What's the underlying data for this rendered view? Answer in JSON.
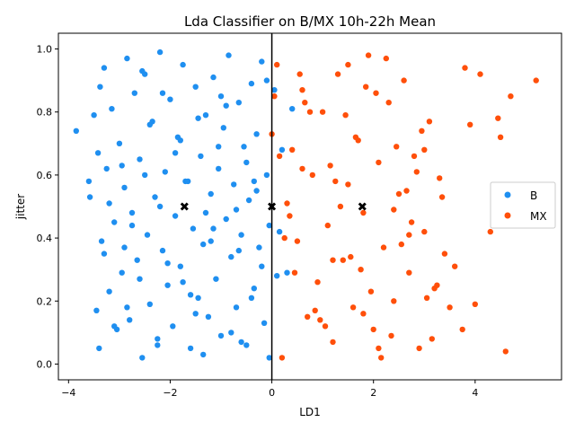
{
  "chart_data": {
    "type": "scatter",
    "title": "Lda Classifier on B/MX 10h-22h Mean",
    "xlabel": "LD1",
    "ylabel": "jitter",
    "xlim": [
      -4.2,
      5.7
    ],
    "ylim": [
      -0.05,
      1.05
    ],
    "xticks": [
      -4,
      -2,
      0,
      2,
      4
    ],
    "yticks": [
      0.0,
      0.2,
      0.4,
      0.6,
      0.8,
      1.0
    ],
    "xtick_labels": [
      "−4",
      "−2",
      "0",
      "2",
      "4"
    ],
    "ytick_labels": [
      "0.0",
      "0.2",
      "0.4",
      "0.6",
      "0.8",
      "1.0"
    ],
    "grid": false,
    "legend_position": "right",
    "series": [
      {
        "name": "B",
        "color": "#1f8ff0",
        "x": [
          -3.85,
          -3.6,
          -3.58,
          -3.5,
          -3.45,
          -3.42,
          -3.4,
          -3.38,
          -3.35,
          -3.3,
          -3.25,
          -3.2,
          -3.15,
          -3.1,
          -3.05,
          -3.0,
          -2.95,
          -2.9,
          -2.85,
          -2.8,
          -2.75,
          -2.7,
          -2.65,
          -2.6,
          -2.55,
          -2.5,
          -2.45,
          -2.4,
          -2.35,
          -2.3,
          -2.25,
          -2.2,
          -2.15,
          -2.1,
          -2.05,
          -2.0,
          -1.95,
          -1.9,
          -1.85,
          -1.8,
          -1.75,
          -1.7,
          -1.6,
          -1.55,
          -1.5,
          -1.45,
          -1.4,
          -1.35,
          -1.3,
          -1.25,
          -1.2,
          -1.15,
          -1.1,
          -1.05,
          -1.0,
          -0.95,
          -0.9,
          -0.85,
          -0.8,
          -0.75,
          -0.7,
          -0.65,
          -0.6,
          -0.55,
          -0.5,
          -0.45,
          -0.4,
          -0.35,
          -0.3,
          -0.25,
          -0.2,
          -0.15,
          -0.1,
          -0.05,
          0.05,
          0.1,
          0.15,
          0.2,
          0.3,
          0.4,
          -3.3,
          -2.95,
          -2.6,
          -2.2,
          -1.8,
          -1.5,
          -1.2,
          -0.9,
          -0.6,
          -0.3,
          -3.1,
          -2.75,
          -2.4,
          -2.05,
          -1.65,
          -1.35,
          -1.05,
          -0.7,
          -0.4,
          -0.1,
          -3.2,
          -2.85,
          -2.5,
          -2.15,
          -1.75,
          -1.45,
          -1.15,
          -0.8,
          -0.5,
          -0.2,
          -2.9,
          -2.55,
          -2.25,
          -1.9,
          -1.6,
          -1.3,
          -1.0,
          -0.65,
          -0.35,
          -0.05
        ],
        "y": [
          0.74,
          0.58,
          0.53,
          0.79,
          0.17,
          0.67,
          0.05,
          0.88,
          0.39,
          0.94,
          0.62,
          0.23,
          0.81,
          0.45,
          0.11,
          0.7,
          0.29,
          0.56,
          0.97,
          0.14,
          0.48,
          0.86,
          0.33,
          0.65,
          0.02,
          0.92,
          0.41,
          0.19,
          0.77,
          0.53,
          0.08,
          0.99,
          0.36,
          0.61,
          0.25,
          0.84,
          0.12,
          0.47,
          0.72,
          0.31,
          0.95,
          0.58,
          0.05,
          0.43,
          0.88,
          0.21,
          0.66,
          0.38,
          0.79,
          0.15,
          0.54,
          0.91,
          0.27,
          0.62,
          0.09,
          0.75,
          0.46,
          0.98,
          0.34,
          0.57,
          0.18,
          0.83,
          0.41,
          0.69,
          0.06,
          0.52,
          0.89,
          0.24,
          0.73,
          0.37,
          0.96,
          0.13,
          0.6,
          0.44,
          0.87,
          0.28,
          0.42,
          0.68,
          0.29,
          0.81,
          0.35,
          0.63,
          0.27,
          0.5,
          0.71,
          0.16,
          0.39,
          0.82,
          0.07,
          0.55,
          0.12,
          0.44,
          0.76,
          0.32,
          0.58,
          0.03,
          0.69,
          0.49,
          0.21,
          0.9,
          0.51,
          0.18,
          0.6,
          0.86,
          0.26,
          0.78,
          0.43,
          0.1,
          0.64,
          0.31,
          0.37,
          0.93,
          0.06,
          0.67,
          0.22,
          0.48,
          0.85,
          0.36,
          0.58,
          0.02
        ]
      },
      {
        "name": "MX",
        "color": "#ff4f0a",
        "x": [
          0.0,
          0.1,
          0.2,
          0.3,
          0.4,
          0.5,
          0.6,
          0.7,
          0.8,
          0.9,
          1.0,
          1.1,
          1.2,
          1.3,
          1.4,
          1.5,
          1.6,
          1.7,
          1.8,
          1.9,
          2.0,
          2.1,
          2.2,
          2.3,
          2.4,
          2.5,
          2.6,
          2.7,
          2.8,
          2.9,
          3.0,
          3.1,
          3.2,
          3.3,
          3.4,
          3.5,
          3.6,
          3.75,
          3.8,
          3.9,
          4.0,
          4.1,
          4.3,
          4.45,
          4.5,
          4.6,
          4.7,
          5.2,
          0.15,
          0.45,
          0.75,
          1.05,
          1.35,
          1.65,
          1.95,
          2.25,
          2.55,
          2.85,
          3.15,
          0.35,
          0.65,
          0.95,
          1.25,
          1.55,
          1.85,
          2.15,
          2.45,
          2.75,
          3.05,
          3.35,
          0.25,
          0.55,
          0.85,
          1.15,
          1.45,
          1.75,
          2.05,
          2.35,
          2.65,
          2.95,
          3.25,
          0.05,
          0.6,
          1.2,
          1.8,
          2.4,
          3.0,
          1.5,
          2.1,
          2.7
        ],
        "y": [
          0.73,
          0.95,
          0.02,
          0.51,
          0.68,
          0.39,
          0.87,
          0.15,
          0.6,
          0.26,
          0.8,
          0.44,
          0.07,
          0.92,
          0.33,
          0.57,
          0.18,
          0.71,
          0.48,
          0.98,
          0.11,
          0.64,
          0.37,
          0.83,
          0.2,
          0.54,
          0.9,
          0.29,
          0.66,
          0.05,
          0.42,
          0.77,
          0.24,
          0.59,
          0.35,
          0.18,
          0.31,
          0.11,
          0.94,
          0.76,
          0.19,
          0.92,
          0.42,
          0.78,
          0.72,
          0.04,
          0.85,
          0.9,
          0.66,
          0.29,
          0.8,
          0.12,
          0.5,
          0.72,
          0.23,
          0.97,
          0.38,
          0.61,
          0.08,
          0.47,
          0.83,
          0.14,
          0.58,
          0.34,
          0.88,
          0.02,
          0.69,
          0.45,
          0.21,
          0.53,
          0.4,
          0.92,
          0.17,
          0.63,
          0.79,
          0.3,
          0.86,
          0.09,
          0.55,
          0.74,
          0.25,
          0.85,
          0.62,
          0.33,
          0.16,
          0.49,
          0.68,
          0.95,
          0.05,
          0.41
        ]
      }
    ],
    "markers": [
      {
        "x": -1.72,
        "y": 0.5,
        "symbol": "x"
      },
      {
        "x": 0.0,
        "y": 0.5,
        "symbol": "x"
      },
      {
        "x": 1.78,
        "y": 0.5,
        "symbol": "x"
      }
    ],
    "vline_x": 0.0
  },
  "legend": {
    "labels": [
      "B",
      "MX"
    ]
  }
}
